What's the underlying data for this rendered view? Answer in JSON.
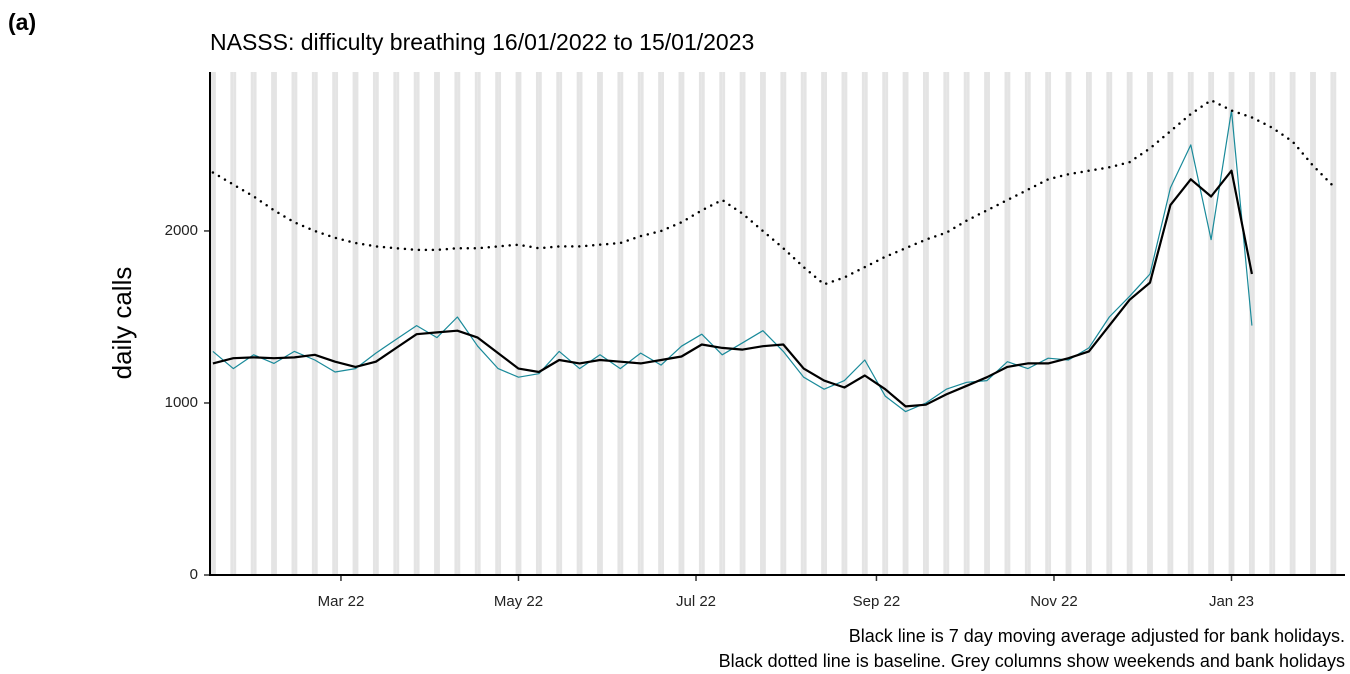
{
  "panel_label": "(a)",
  "chart_data": {
    "type": "line",
    "title": "NASSS: difficulty breathing 16/01/2022 to 15/01/2023",
    "y_label": "daily calls",
    "notes": [
      "Black line is 7 day moving average adjusted for bank holidays.",
      "Black dotted line is baseline. Grey columns show weekends and bank holidays"
    ],
    "x": [
      "2022-01-16",
      "2022-01-23",
      "2022-01-30",
      "2022-02-06",
      "2022-02-13",
      "2022-02-20",
      "2022-02-27",
      "2022-03-06",
      "2022-03-13",
      "2022-03-20",
      "2022-03-27",
      "2022-04-03",
      "2022-04-10",
      "2022-04-17",
      "2022-04-24",
      "2022-05-01",
      "2022-05-08",
      "2022-05-15",
      "2022-05-22",
      "2022-05-29",
      "2022-06-05",
      "2022-06-12",
      "2022-06-19",
      "2022-06-26",
      "2022-07-03",
      "2022-07-10",
      "2022-07-17",
      "2022-07-24",
      "2022-07-31",
      "2022-08-07",
      "2022-08-14",
      "2022-08-21",
      "2022-08-28",
      "2022-09-04",
      "2022-09-11",
      "2022-09-18",
      "2022-09-25",
      "2022-10-02",
      "2022-10-09",
      "2022-10-16",
      "2022-10-23",
      "2022-10-30",
      "2022-11-06",
      "2022-11-13",
      "2022-11-20",
      "2022-11-27",
      "2022-12-04",
      "2022-12-11",
      "2022-12-18",
      "2022-12-25",
      "2023-01-01",
      "2023-01-08",
      "2023-01-15",
      "2023-01-22",
      "2023-01-29",
      "2023-02-05"
    ],
    "series": [
      {
        "color": "#1a8a9a",
        "width": 1.2,
        "dash": "solid",
        "values": [
          1300,
          1200,
          1280,
          1230,
          1300,
          1250,
          1180,
          1200,
          1290,
          1370,
          1450,
          1380,
          1500,
          1330,
          1200,
          1150,
          1170,
          1300,
          1200,
          1280,
          1200,
          1290,
          1220,
          1330,
          1400,
          1280,
          1350,
          1420,
          1300,
          1150,
          1080,
          1130,
          1250,
          1040,
          950,
          1000,
          1080,
          1120,
          1130,
          1240,
          1200,
          1260,
          1250,
          1320,
          1500,
          1620,
          1750,
          2250,
          2500,
          1950,
          2700,
          1450,
          null,
          null,
          null,
          null
        ]
      },
      {
        "color": "#000000",
        "width": 2.2,
        "dash": "solid",
        "values": [
          1230,
          1260,
          1265,
          1260,
          1265,
          1280,
          1240,
          1210,
          1240,
          1320,
          1400,
          1410,
          1420,
          1380,
          1290,
          1200,
          1180,
          1250,
          1230,
          1250,
          1240,
          1230,
          1250,
          1270,
          1340,
          1320,
          1310,
          1330,
          1340,
          1200,
          1130,
          1090,
          1160,
          1080,
          980,
          990,
          1050,
          1100,
          1150,
          1210,
          1230,
          1230,
          1260,
          1300,
          1450,
          1600,
          1700,
          2150,
          2300,
          2200,
          2350,
          1750,
          null,
          null,
          null,
          null
        ]
      },
      {
        "color": "#000000",
        "width": 2.5,
        "dash": "dotted",
        "values": [
          2340,
          2270,
          2200,
          2120,
          2050,
          2000,
          1960,
          1930,
          1910,
          1900,
          1890,
          1890,
          1900,
          1900,
          1910,
          1920,
          1900,
          1910,
          1910,
          1920,
          1930,
          1970,
          2000,
          2050,
          2120,
          2180,
          2100,
          2000,
          1900,
          1790,
          1690,
          1730,
          1790,
          1850,
          1900,
          1950,
          1990,
          2060,
          2120,
          2180,
          2240,
          2300,
          2330,
          2350,
          2370,
          2400,
          2480,
          2580,
          2680,
          2760,
          2700,
          2660,
          2600,
          2520,
          2380,
          2260
        ]
      }
    ],
    "xlim": [
      "2022-01-15",
      "2023-02-09"
    ],
    "xticks": [
      {
        "value": "2022-03-01",
        "label": "Mar 22"
      },
      {
        "value": "2022-05-01",
        "label": "May 22"
      },
      {
        "value": "2022-07-01",
        "label": "Jul 22"
      },
      {
        "value": "2022-09-01",
        "label": "Sep 22"
      },
      {
        "value": "2022-11-01",
        "label": "Nov 22"
      },
      {
        "value": "2023-01-01",
        "label": "Jan 23"
      }
    ],
    "ylim": [
      0,
      2924
    ],
    "yticks": [
      0,
      1000,
      2000
    ],
    "weekend_shading": true,
    "shade_color": "#e4e4e4"
  }
}
